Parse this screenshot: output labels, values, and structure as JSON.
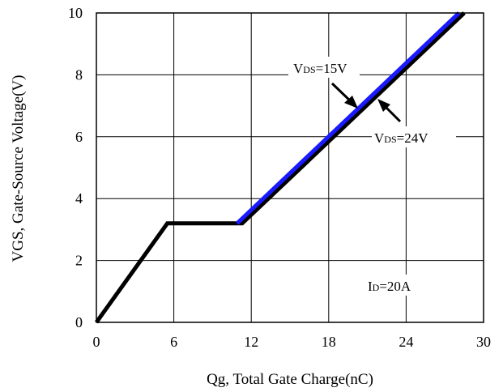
{
  "chart_data": {
    "type": "line",
    "xlabel": "Qg, Total Gate Charge(nC)",
    "ylabel": "VGS, Gate-Source Voltage(V)",
    "xlim": [
      0,
      30
    ],
    "ylim": [
      0,
      10
    ],
    "x_ticks": [
      "0",
      "6",
      "12",
      "18",
      "24",
      "30"
    ],
    "y_ticks": [
      "0",
      "2",
      "4",
      "6",
      "8",
      "10"
    ],
    "grid": true,
    "series": [
      {
        "name": "VDS=24V",
        "color": "#000000",
        "x": [
          0,
          5.5,
          11.3,
          28.5
        ],
        "y": [
          0,
          3.2,
          3.2,
          10
        ]
      },
      {
        "name": "VDS=15V",
        "color": "#1a1aff",
        "x": [
          10.9,
          28.1
        ],
        "y": [
          3.2,
          10
        ]
      }
    ],
    "annotations": {
      "vds15": {
        "main": "V",
        "sub": "DS",
        "rest": "=15V"
      },
      "vds24": {
        "main": "V",
        "sub": "DS",
        "rest": "=24V"
      },
      "id": {
        "main": "I",
        "sub": "D",
        "rest": "=20A"
      }
    }
  }
}
